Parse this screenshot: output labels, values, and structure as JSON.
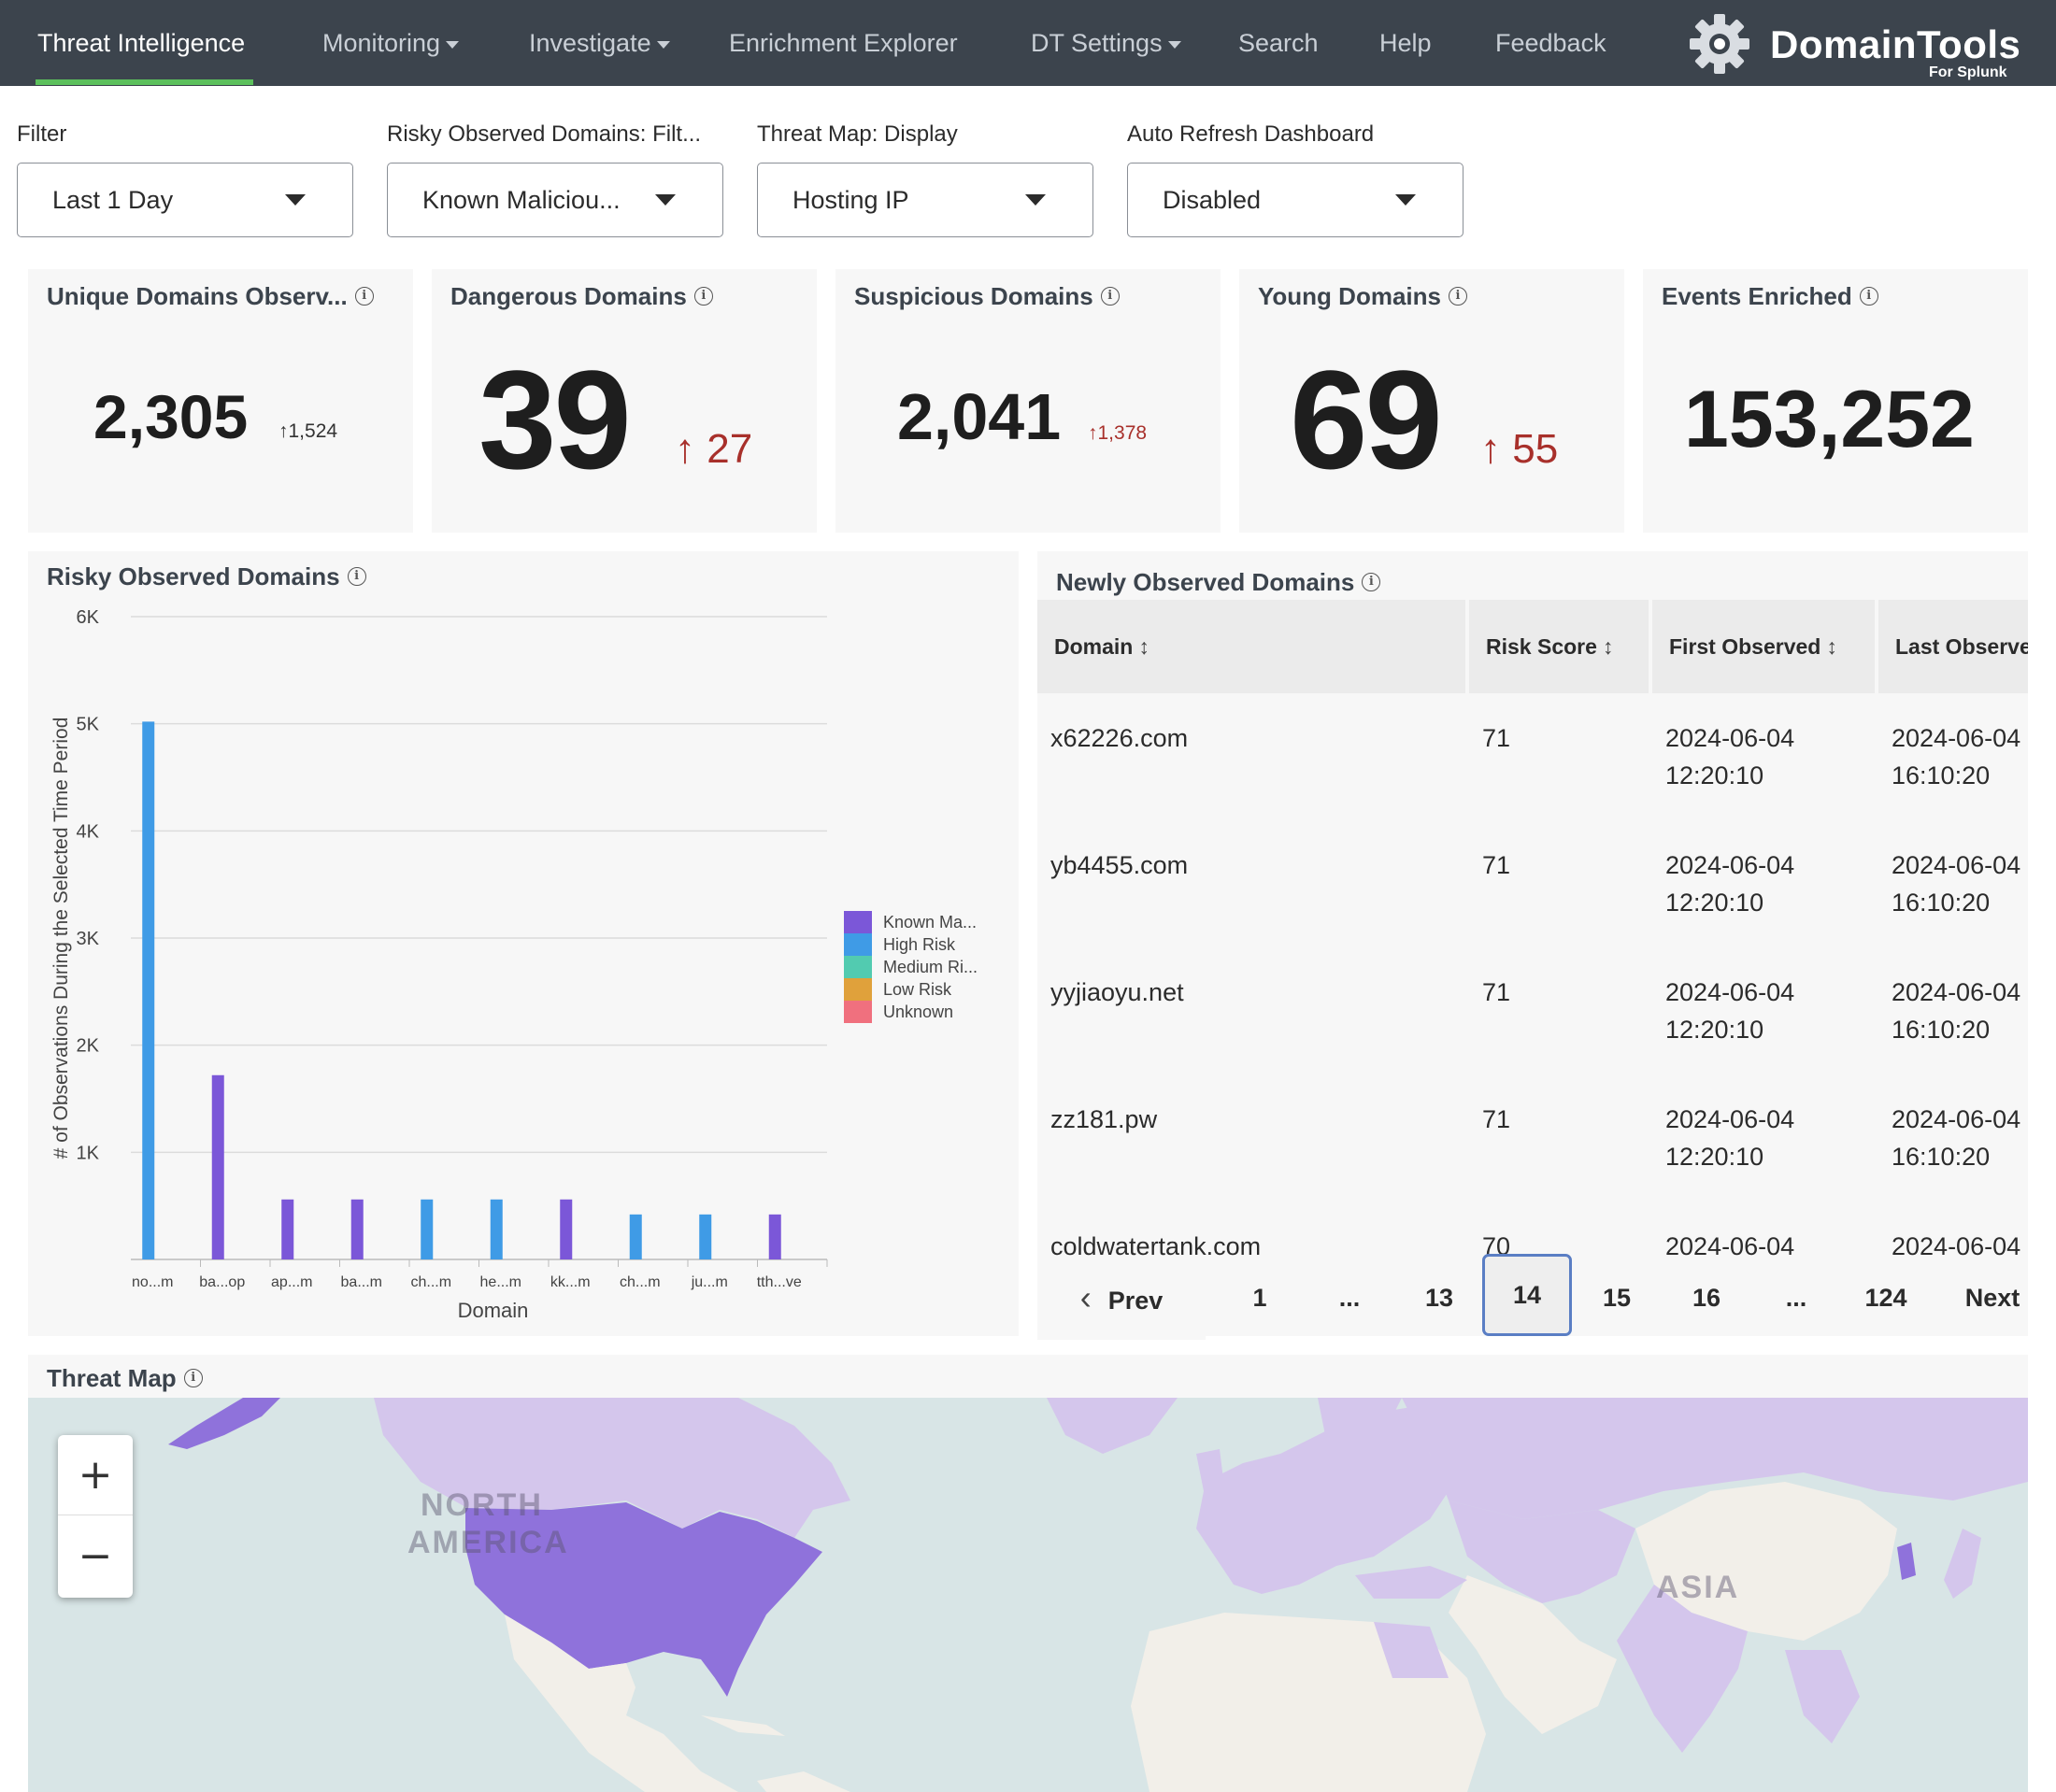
{
  "nav": {
    "items": [
      {
        "label": "Threat Intelligence",
        "dropdown": false
      },
      {
        "label": "Monitoring",
        "dropdown": true
      },
      {
        "label": "Investigate",
        "dropdown": true
      },
      {
        "label": "Enrichment Explorer",
        "dropdown": false
      },
      {
        "label": "DT Settings",
        "dropdown": true
      },
      {
        "label": "Search",
        "dropdown": false
      },
      {
        "label": "Help",
        "dropdown": false
      },
      {
        "label": "Feedback",
        "dropdown": false
      }
    ],
    "active": "Threat Intelligence",
    "logo": {
      "name": "DomainTools",
      "sub": "For Splunk",
      "icon": "gear-logo-icon"
    }
  },
  "filters": [
    {
      "label": "Filter",
      "value": "Last 1 Day"
    },
    {
      "label": "Risky Observed Domains: Filt...",
      "value": "Known Maliciou..."
    },
    {
      "label": "Threat Map: Display",
      "value": "Hosting IP"
    },
    {
      "label": "Auto Refresh Dashboard",
      "value": "Disabled"
    }
  ],
  "kpis": {
    "unique": {
      "title": "Unique Domains Observ...",
      "value": "2,305",
      "delta": "1,524"
    },
    "dangerous": {
      "title": "Dangerous Domains",
      "value": "39",
      "delta": "27"
    },
    "suspicious": {
      "title": "Suspicious Domains",
      "value": "2,041",
      "delta": "1,378"
    },
    "young": {
      "title": "Young Domains",
      "value": "69",
      "delta": "55"
    },
    "events": {
      "title": "Events Enriched",
      "value": "153,252"
    }
  },
  "chart_data": {
    "type": "bar",
    "title": "Risky Observed Domains",
    "xlabel": "Domain",
    "ylabel": "# of Observations During the Selected Time Period",
    "ylim": [
      0,
      6000
    ],
    "yticks": [
      "1K",
      "2K",
      "3K",
      "4K",
      "5K",
      "6K"
    ],
    "categories": [
      "no...m",
      "ba...op",
      "ap...m",
      "ba...m",
      "ch...m",
      "he...m",
      "kk...m",
      "ch...m",
      "ju...m",
      "tth...ve"
    ],
    "values": [
      5020,
      1720,
      560,
      560,
      560,
      560,
      560,
      420,
      420,
      420
    ],
    "bar_series": [
      "High Risk",
      "Known Ma...",
      "Known Ma...",
      "Known Ma...",
      "High Risk",
      "High Risk",
      "Known Ma...",
      "High Risk",
      "High Risk",
      "Known Ma..."
    ],
    "legend": [
      {
        "name": "Known Ma...",
        "color": "#7b57d8"
      },
      {
        "name": "High Risk",
        "color": "#3f9be6"
      },
      {
        "name": "Medium Ri...",
        "color": "#52cbb0"
      },
      {
        "name": "Low Risk",
        "color": "#e0a13b"
      },
      {
        "name": "Unknown",
        "color": "#f0707e"
      }
    ],
    "legend_position": "right",
    "grid": true
  },
  "table": {
    "title": "Newly Observed Domains",
    "columns": [
      "Domain",
      "Risk Score",
      "First Observed",
      "Last Observe"
    ],
    "rows": [
      {
        "domain": "x62226.com",
        "score": "71",
        "first_date": "2024-06-04",
        "first_time": "12:20:10",
        "last_date": "2024-06-04",
        "last_time": "16:10:20"
      },
      {
        "domain": "yb4455.com",
        "score": "71",
        "first_date": "2024-06-04",
        "first_time": "12:20:10",
        "last_date": "2024-06-04",
        "last_time": "16:10:20"
      },
      {
        "domain": "yyjiaoyu.net",
        "score": "71",
        "first_date": "2024-06-04",
        "first_time": "12:20:10",
        "last_date": "2024-06-04",
        "last_time": "16:10:20"
      },
      {
        "domain": "zz181.pw",
        "score": "71",
        "first_date": "2024-06-04",
        "first_time": "12:20:10",
        "last_date": "2024-06-04",
        "last_time": "16:10:20"
      },
      {
        "domain": "coldwatertank.com",
        "score": "70",
        "first_date": "2024-06-04",
        "first_time": "",
        "last_date": "2024-06-04",
        "last_time": ""
      }
    ],
    "pagination": {
      "prev": "Prev",
      "next": "Next",
      "pages": [
        "1",
        "...",
        "13",
        "14",
        "15",
        "16",
        "...",
        "124"
      ],
      "current": "14"
    }
  },
  "map": {
    "title": "Threat Map",
    "labels": [
      "NORTH",
      "AMERICA",
      "ASIA"
    ],
    "zoom_in": "+",
    "zoom_out": "−",
    "colors": {
      "water": "#d8e5e6",
      "land": "#f2efe9",
      "light": "#d4c6ec",
      "strong": "#8f72db"
    }
  }
}
